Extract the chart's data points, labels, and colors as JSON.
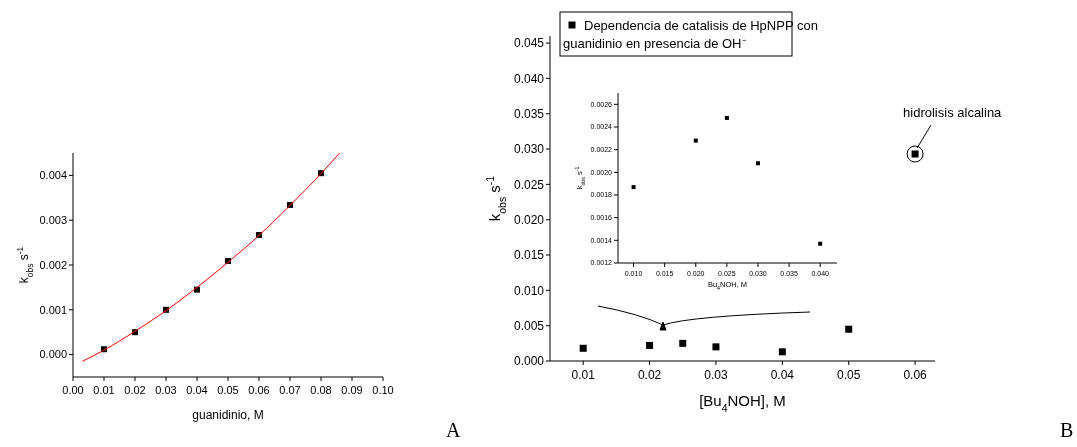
{
  "chart_data": [
    {
      "type": "scatter",
      "xlabel": "guanidinio, M",
      "ylabel": "k$_{obs}$ s$^{-1}$",
      "marker": "square",
      "legend": false,
      "grid": false,
      "xlim": [
        0,
        0.1
      ],
      "xticks": [
        {
          "value": 0,
          "label": "0.00"
        },
        0.01,
        0.02,
        0.03,
        0.04,
        0.05,
        0.06,
        0.07,
        0.08,
        0.09,
        {
          "value": 0.1,
          "label": "0.10"
        }
      ],
      "ylim": [
        -0.0005,
        0.0045
      ],
      "yticks": [
        {
          "value": 0,
          "label": "0.000"
        },
        0.001,
        0.002,
        0.003,
        0.004
      ],
      "series": [
        {
          "color": "#000000",
          "x": [
            0.01,
            0.02,
            0.03,
            0.04,
            0.05,
            0.06,
            0.07,
            0.08
          ],
          "values": [
            0.00012,
            0.0005,
            0.001,
            0.00145,
            0.00209,
            0.00267,
            0.00334,
            0.00405
          ]
        },
        {
          "type": "line",
          "color": "#ff0000",
          "marker": "none",
          "x": [
            0.003,
            0.01,
            0.02,
            0.03,
            0.04,
            0.05,
            0.06,
            0.07,
            0.08,
            0.086
          ],
          "values": [
            -0.00015,
            0.0001,
            0.00052,
            0.00098,
            0.0015,
            0.00206,
            0.00266,
            0.00333,
            0.00404,
            0.0045
          ]
        }
      ],
      "annotations": [
        "A"
      ]
    },
    {
      "type": "scatter",
      "xlabel": "[Bu$_{4}$NOH], M",
      "ylabel": "k$_{obs}$ s$^{-1}$",
      "marker": "square",
      "legend": "top",
      "grid": false,
      "xlim": [
        0.005,
        0.063
      ],
      "xticks": [
        0.01,
        0.02,
        0.03,
        0.04,
        0.05,
        0.06
      ],
      "ylim": [
        0,
        0.046
      ],
      "yticks": [
        {
          "value": 0,
          "label": "0.000"
        },
        0.005,
        {
          "value": 0.01,
          "label": "0.010"
        },
        0.015,
        {
          "value": 0.02,
          "label": "0.020"
        },
        0.025,
        {
          "value": 0.03,
          "label": "0.030"
        },
        0.035,
        {
          "value": 0.04,
          "label": "0.040"
        },
        0.045
      ],
      "series": [
        {
          "name": "Dependencia de catalisis de HpNPP con guanidinio en presencia de OH⁻",
          "color": "#000000",
          "x": [
            0.01,
            0.02,
            0.025,
            0.03,
            0.04,
            0.05,
            0.06
          ],
          "values": [
            0.0018,
            0.0022,
            0.0025,
            0.002,
            0.0013,
            0.0045,
            0.0293
          ]
        }
      ],
      "annotations": [
        "B",
        {
          "text": "hidrolisis alcalina",
          "x": 0.06,
          "y": 0.0293
        }
      ]
    },
    {
      "type": "scatter",
      "xlabel": "Bu$_{4}$NOH, M",
      "ylabel": "k$_{obs}$ s$^{-1}$",
      "marker": "square",
      "legend": false,
      "grid": false,
      "xlim": [
        0.0075,
        0.0427
      ],
      "xticks": [
        {
          "value": 0.01,
          "label": "0.010"
        },
        0.015,
        {
          "value": 0.02,
          "label": "0.020"
        },
        0.025,
        {
          "value": 0.03,
          "label": "0.030"
        },
        0.035,
        {
          "value": 0.04,
          "label": "0.040"
        }
      ],
      "ylim": [
        0.0012,
        0.0027
      ],
      "yticks": [
        0.0012,
        0.0014,
        0.0016,
        0.0018,
        {
          "value": 0.002,
          "label": "0.0020"
        },
        0.0022,
        0.0024,
        0.0026
      ],
      "series": [
        {
          "color": "#000000",
          "x": [
            0.01,
            0.02,
            0.025,
            0.03,
            0.04
          ],
          "values": [
            0.00187,
            0.00228,
            0.00248,
            0.00208,
            0.00137
          ]
        }
      ]
    }
  ]
}
